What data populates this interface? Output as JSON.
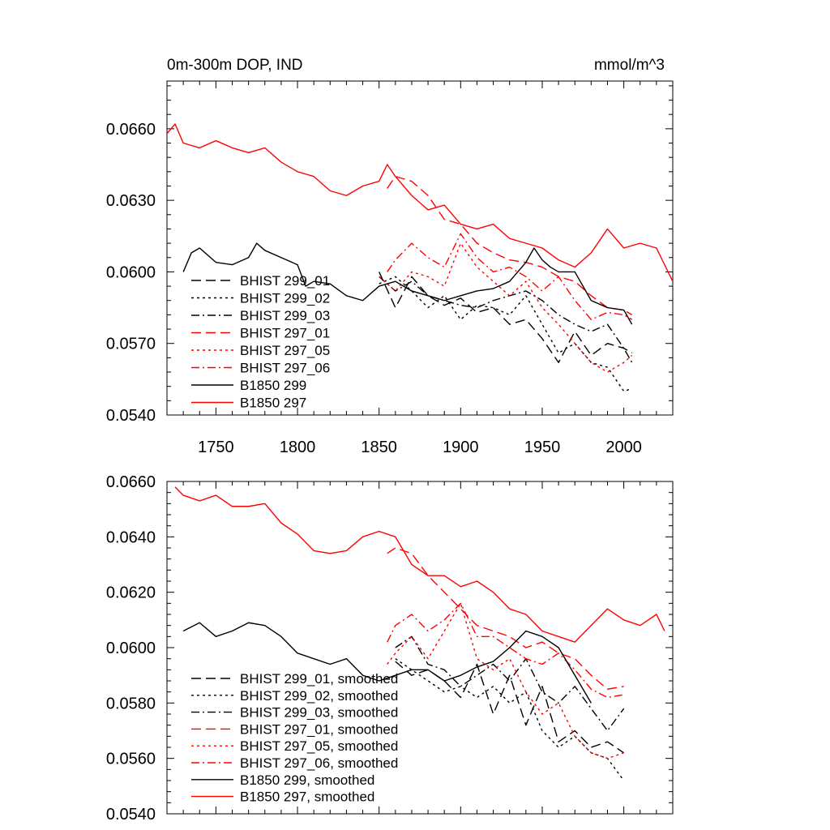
{
  "chart_data": [
    {
      "type": "line",
      "title": "0m-300m DOP, IND",
      "units": "mmol/m^3",
      "xlim": [
        1720,
        2030
      ],
      "ylim": [
        0.054,
        0.068
      ],
      "x_ticks": [
        1750,
        1800,
        1850,
        1900,
        1950,
        2000
      ],
      "x_tick_labels": [
        "1750",
        "1800",
        "1850",
        "1900",
        "1950",
        "2000"
      ],
      "y_ticks": [
        0.054,
        0.057,
        0.06,
        0.063,
        0.066
      ],
      "y_tick_labels": [
        "0.0540",
        "0.0570",
        "0.0600",
        "0.0630",
        "0.0660"
      ],
      "legend_position": "bottom-left",
      "series": [
        {
          "name": "BHIST 299_01",
          "color": "#000000",
          "dash": "dashed",
          "x": [
            1850,
            1860,
            1870,
            1880,
            1890,
            1900,
            1910,
            1920,
            1930,
            1940,
            1950,
            1960,
            1970,
            1980,
            1990,
            2000,
            2005
          ],
          "y": [
            0.06,
            0.0585,
            0.0598,
            0.059,
            0.0586,
            0.0589,
            0.0583,
            0.0585,
            0.0578,
            0.058,
            0.0572,
            0.0562,
            0.0575,
            0.0565,
            0.057,
            0.0568,
            0.0566
          ]
        },
        {
          "name": "BHIST 299_02",
          "color": "#000000",
          "dash": "dotted",
          "x": [
            1850,
            1860,
            1870,
            1880,
            1890,
            1900,
            1910,
            1920,
            1930,
            1940,
            1950,
            1960,
            1970,
            1980,
            1990,
            2000,
            2005
          ],
          "y": [
            0.0595,
            0.0598,
            0.0592,
            0.0585,
            0.059,
            0.058,
            0.0586,
            0.0585,
            0.0582,
            0.059,
            0.0578,
            0.0566,
            0.057,
            0.0562,
            0.056,
            0.055,
            0.0551
          ]
        },
        {
          "name": "BHIST 299_03",
          "color": "#000000",
          "dash": "dashdot",
          "x": [
            1850,
            1860,
            1870,
            1880,
            1890,
            1900,
            1910,
            1920,
            1930,
            1940,
            1950,
            1960,
            1970,
            1980,
            1990,
            2000,
            2005
          ],
          "y": [
            0.0598,
            0.0592,
            0.0596,
            0.059,
            0.0588,
            0.0586,
            0.0585,
            0.0588,
            0.059,
            0.0592,
            0.0588,
            0.0582,
            0.0578,
            0.0575,
            0.0578,
            0.0568,
            0.0562
          ]
        },
        {
          "name": "BHIST 297_01",
          "color": "#ff0000",
          "dash": "dashed",
          "x": [
            1855,
            1860,
            1870,
            1880,
            1890,
            1900,
            1910,
            1920,
            1930,
            1940,
            1950,
            1960,
            1970,
            1980,
            1990,
            2000,
            2005
          ],
          "y": [
            0.0635,
            0.064,
            0.0638,
            0.0632,
            0.0622,
            0.062,
            0.0612,
            0.0608,
            0.0605,
            0.0604,
            0.0602,
            0.0598,
            0.0596,
            0.059,
            0.0585,
            0.0584,
            0.0582
          ]
        },
        {
          "name": "BHIST 297_05",
          "color": "#ff0000",
          "dash": "dotted",
          "x": [
            1850,
            1860,
            1870,
            1880,
            1890,
            1900,
            1910,
            1920,
            1930,
            1940,
            1950,
            1960,
            1970,
            1980,
            1990,
            2000,
            2005
          ],
          "y": [
            0.0598,
            0.0592,
            0.06,
            0.0598,
            0.0594,
            0.0612,
            0.0602,
            0.0596,
            0.059,
            0.0596,
            0.0585,
            0.0578,
            0.057,
            0.0562,
            0.0558,
            0.0562,
            0.0565
          ]
        },
        {
          "name": "BHIST 297_06",
          "color": "#ff0000",
          "dash": "dashdot",
          "x": [
            1855,
            1860,
            1870,
            1880,
            1890,
            1900,
            1910,
            1920,
            1930,
            1940,
            1950,
            1960,
            1970,
            1980,
            1990,
            2000,
            2005
          ],
          "y": [
            0.06,
            0.0605,
            0.0612,
            0.0606,
            0.0602,
            0.0616,
            0.0606,
            0.06,
            0.0602,
            0.0598,
            0.0592,
            0.0598,
            0.0588,
            0.058,
            0.0583,
            0.0582,
            0.058
          ]
        },
        {
          "name": "B1850 299",
          "color": "#000000",
          "dash": "solid",
          "x": [
            1730,
            1735,
            1740,
            1750,
            1760,
            1770,
            1775,
            1780,
            1790,
            1800,
            1805,
            1810,
            1820,
            1830,
            1840,
            1850,
            1860,
            1870,
            1880,
            1890,
            1900,
            1910,
            1920,
            1930,
            1940,
            1945,
            1950,
            1955,
            1960,
            1970,
            1980,
            1990,
            2000,
            2005
          ],
          "y": [
            0.06,
            0.0608,
            0.061,
            0.0604,
            0.0603,
            0.0606,
            0.0612,
            0.0609,
            0.0606,
            0.0603,
            0.0594,
            0.0596,
            0.0595,
            0.059,
            0.0588,
            0.0594,
            0.0596,
            0.0592,
            0.059,
            0.0588,
            0.059,
            0.0592,
            0.0593,
            0.0596,
            0.0604,
            0.061,
            0.0605,
            0.0602,
            0.06,
            0.06,
            0.0588,
            0.0585,
            0.0584,
            0.0578
          ]
        },
        {
          "name": "B1850 297",
          "color": "#ff0000",
          "dash": "solid",
          "x": [
            1720,
            1725,
            1730,
            1740,
            1750,
            1760,
            1770,
            1780,
            1790,
            1800,
            1810,
            1820,
            1830,
            1840,
            1850,
            1855,
            1860,
            1870,
            1880,
            1890,
            1900,
            1910,
            1920,
            1930,
            1940,
            1950,
            1960,
            1970,
            1980,
            1990,
            2000,
            2010,
            2020,
            2030
          ],
          "y": [
            0.0658,
            0.0662,
            0.0654,
            0.0652,
            0.0655,
            0.0652,
            0.065,
            0.0652,
            0.0646,
            0.0642,
            0.064,
            0.0634,
            0.0632,
            0.0636,
            0.0638,
            0.0645,
            0.064,
            0.0632,
            0.0626,
            0.0628,
            0.062,
            0.0618,
            0.062,
            0.0614,
            0.0612,
            0.061,
            0.0605,
            0.0602,
            0.0608,
            0.0618,
            0.061,
            0.0612,
            0.061,
            0.0596
          ]
        }
      ]
    },
    {
      "type": "line",
      "xlim": [
        1720,
        2030
      ],
      "ylim": [
        0.054,
        0.066
      ],
      "x_ticks": [
        1750,
        1800,
        1850,
        1900,
        1950,
        2000
      ],
      "y_ticks": [
        0.054,
        0.056,
        0.058,
        0.06,
        0.062,
        0.064,
        0.066
      ],
      "y_tick_labels": [
        "0.0540",
        "0.0560",
        "0.0580",
        "0.0600",
        "0.0620",
        "0.0640",
        "0.0660"
      ],
      "legend_position": "bottom-left",
      "series": [
        {
          "name": "BHIST 299_01, smoothed",
          "color": "#000000",
          "dash": "dashed",
          "x": [
            1860,
            1870,
            1880,
            1890,
            1900,
            1910,
            1920,
            1930,
            1940,
            1950,
            1960,
            1970,
            1980,
            1990,
            2000
          ],
          "y": [
            0.0595,
            0.059,
            0.0592,
            0.0588,
            0.0582,
            0.0594,
            0.0576,
            0.059,
            0.0572,
            0.0586,
            0.0566,
            0.057,
            0.0564,
            0.0566,
            0.0562
          ]
        },
        {
          "name": "BHIST 299_02, smoothed",
          "color": "#000000",
          "dash": "dotted",
          "x": [
            1860,
            1870,
            1880,
            1890,
            1900,
            1910,
            1920,
            1930,
            1940,
            1950,
            1960,
            1970,
            1980,
            1990,
            2000
          ],
          "y": [
            0.0596,
            0.0592,
            0.0588,
            0.0584,
            0.0586,
            0.0582,
            0.0586,
            0.058,
            0.0584,
            0.057,
            0.0564,
            0.0568,
            0.0562,
            0.056,
            0.0552
          ]
        },
        {
          "name": "BHIST 299_03, smoothed",
          "color": "#000000",
          "dash": "dashdot",
          "x": [
            1860,
            1870,
            1880,
            1890,
            1900,
            1910,
            1920,
            1930,
            1940,
            1950,
            1960,
            1970,
            1980,
            1990,
            2000
          ],
          "y": [
            0.06,
            0.0604,
            0.0594,
            0.0592,
            0.0586,
            0.059,
            0.0594,
            0.0588,
            0.0596,
            0.0584,
            0.058,
            0.0586,
            0.0578,
            0.057,
            0.0578
          ]
        },
        {
          "name": "BHIST 297_01, smoothed",
          "color": "#ff0000",
          "dash": "dashed",
          "x": [
            1855,
            1860,
            1870,
            1880,
            1890,
            1900,
            1910,
            1920,
            1930,
            1940,
            1950,
            1960,
            1970,
            1980,
            1990,
            2000
          ],
          "y": [
            0.0634,
            0.0636,
            0.0634,
            0.0626,
            0.062,
            0.0614,
            0.0608,
            0.0606,
            0.0604,
            0.06,
            0.0602,
            0.0598,
            0.0596,
            0.059,
            0.0585,
            0.0586
          ]
        },
        {
          "name": "BHIST 297_05, smoothed",
          "color": "#ff0000",
          "dash": "dotted",
          "x": [
            1855,
            1860,
            1870,
            1880,
            1890,
            1900,
            1910,
            1920,
            1930,
            1940,
            1950,
            1960,
            1970,
            1980,
            1990,
            2000
          ],
          "y": [
            0.0594,
            0.0598,
            0.0604,
            0.0596,
            0.0606,
            0.0616,
            0.0596,
            0.0592,
            0.0596,
            0.0584,
            0.0576,
            0.058,
            0.0568,
            0.0562,
            0.056,
            0.0562
          ]
        },
        {
          "name": "BHIST 297_06, smoothed",
          "color": "#ff0000",
          "dash": "dashdot",
          "x": [
            1855,
            1860,
            1870,
            1880,
            1890,
            1900,
            1910,
            1920,
            1930,
            1940,
            1950,
            1960,
            1970,
            1980,
            1990,
            2000
          ],
          "y": [
            0.0602,
            0.0608,
            0.0612,
            0.0606,
            0.061,
            0.0616,
            0.0604,
            0.0604,
            0.06,
            0.0596,
            0.0594,
            0.0598,
            0.0592,
            0.0585,
            0.0582,
            0.0583
          ]
        },
        {
          "name": "B1850 299, smoothed",
          "color": "#000000",
          "dash": "solid",
          "x": [
            1730,
            1740,
            1750,
            1760,
            1770,
            1780,
            1790,
            1800,
            1810,
            1820,
            1830,
            1840,
            1850,
            1860,
            1870,
            1880,
            1890,
            1900,
            1910,
            1920,
            1930,
            1940,
            1950,
            1960,
            1970,
            1980
          ],
          "y": [
            0.0606,
            0.0609,
            0.0604,
            0.0606,
            0.0609,
            0.0608,
            0.0604,
            0.0598,
            0.0596,
            0.0594,
            0.0596,
            0.059,
            0.0588,
            0.059,
            0.0592,
            0.0592,
            0.0588,
            0.059,
            0.0593,
            0.0595,
            0.06,
            0.0606,
            0.0604,
            0.06,
            0.059,
            0.058
          ]
        },
        {
          "name": "B1850 297, smoothed",
          "color": "#ff0000",
          "dash": "solid",
          "x": [
            1725,
            1730,
            1740,
            1750,
            1760,
            1770,
            1780,
            1790,
            1800,
            1810,
            1820,
            1830,
            1840,
            1850,
            1860,
            1870,
            1880,
            1890,
            1900,
            1910,
            1920,
            1930,
            1940,
            1950,
            1960,
            1970,
            1980,
            1990,
            2000,
            2010,
            2020,
            2025
          ],
          "y": [
            0.0658,
            0.0655,
            0.0653,
            0.0655,
            0.0651,
            0.0651,
            0.0652,
            0.0645,
            0.0641,
            0.0635,
            0.0634,
            0.0635,
            0.064,
            0.0642,
            0.064,
            0.063,
            0.0626,
            0.0626,
            0.0622,
            0.0624,
            0.062,
            0.0614,
            0.0612,
            0.0606,
            0.0604,
            0.0602,
            0.0608,
            0.0614,
            0.061,
            0.0608,
            0.0612,
            0.0606
          ]
        }
      ]
    }
  ]
}
